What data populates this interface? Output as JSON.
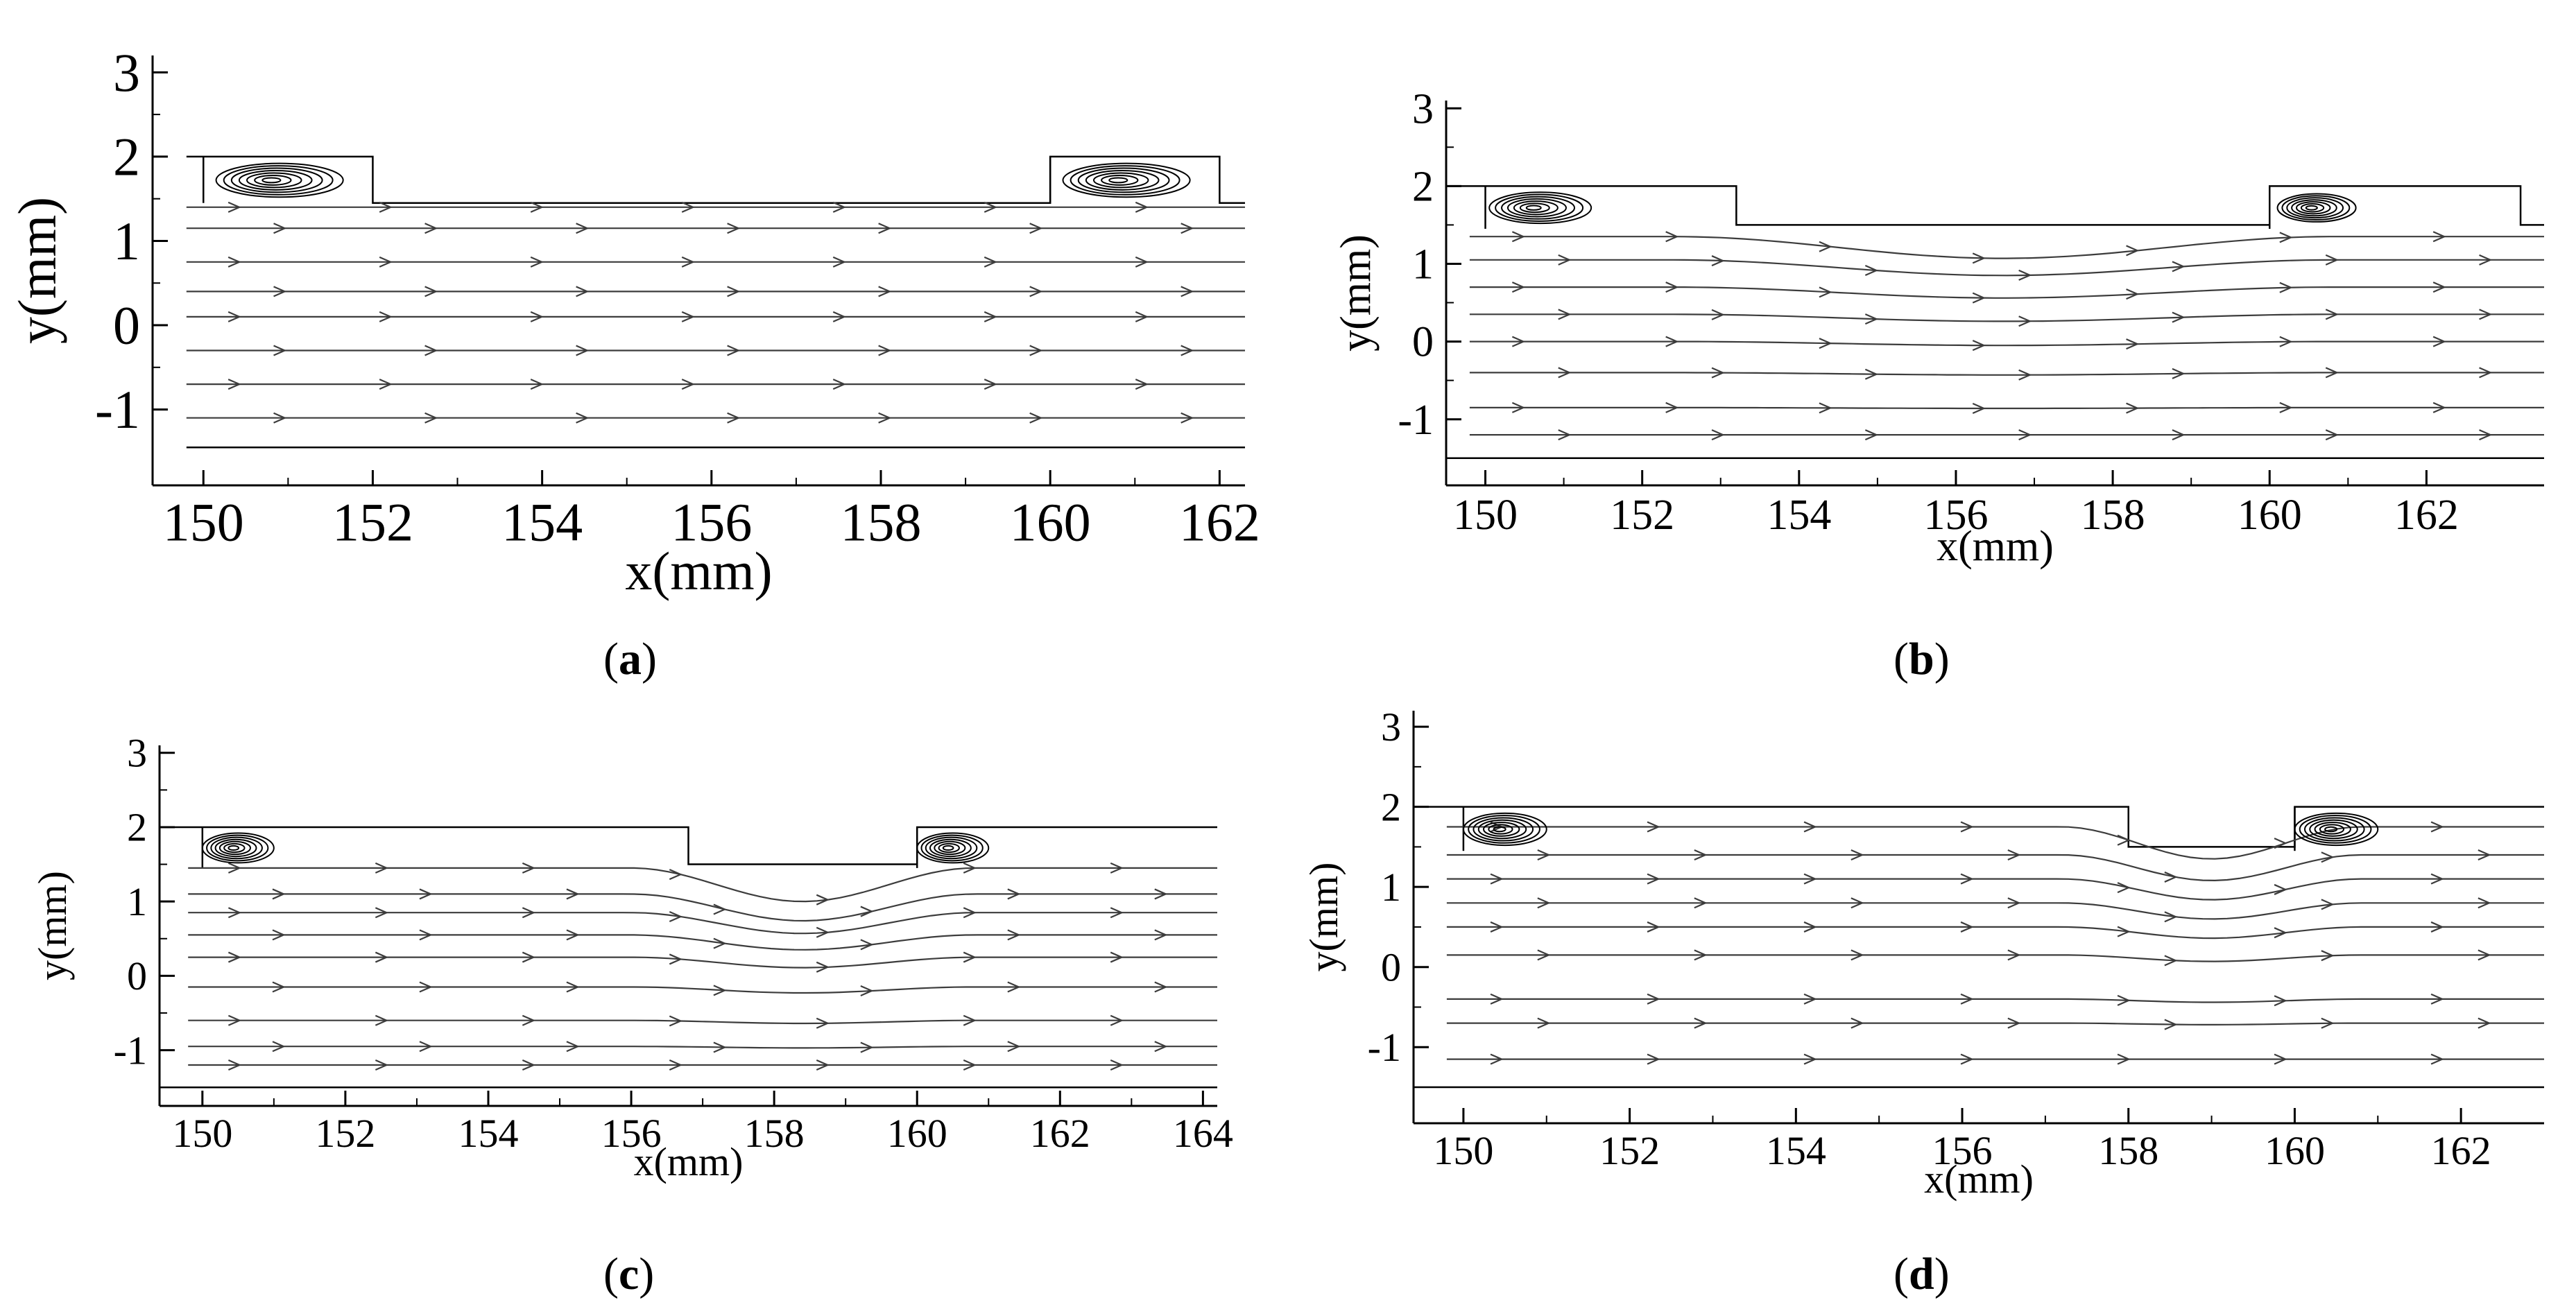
{
  "figure": {
    "panel_labels": [
      "a",
      "b",
      "c",
      "d"
    ]
  },
  "colors": {
    "axis": "#000000",
    "streamline": "#3c3c3c",
    "vortex": "#000000",
    "background": "#ffffff"
  },
  "chart_data": [
    {
      "panel": "a",
      "type": "line",
      "description_kind": "streamlines",
      "xlabel": "x(mm)",
      "ylabel": "y(mm)",
      "xlim": [
        149.4,
        162.3
      ],
      "ylim": [
        -1.9,
        3.2
      ],
      "xticks": [
        150,
        152,
        154,
        156,
        158,
        160,
        162
      ],
      "yticks": [
        -1,
        0,
        1,
        2,
        3
      ],
      "grid": false,
      "channel_top_profile": [
        [
          150,
          2.0
        ],
        [
          152,
          2.0
        ],
        [
          152,
          1.45
        ],
        [
          160,
          1.45
        ],
        [
          160,
          2.0
        ],
        [
          162,
          2.0
        ],
        [
          162,
          1.45
        ],
        [
          162.3,
          1.45
        ]
      ],
      "channel_bottom": -1.45,
      "channel_x_range": [
        149.8,
        162.3
      ],
      "streamline_y": [
        1.4,
        1.15,
        0.75,
        0.4,
        0.1,
        -0.3,
        -0.7,
        -1.1
      ],
      "streamline_dip": [
        0,
        0,
        0,
        0,
        0,
        0,
        0,
        0
      ],
      "vortices": [
        {
          "x": 150.9,
          "y": 1.72,
          "rx": 0.75,
          "ry": 0.2
        },
        {
          "x": 160.9,
          "y": 1.72,
          "rx": 0.75,
          "ry": 0.2
        }
      ]
    },
    {
      "panel": "b",
      "type": "line",
      "description_kind": "streamlines",
      "xlabel": "x(mm)",
      "ylabel": "y(mm)",
      "xlim": [
        149.5,
        163.5
      ],
      "ylim": [
        -1.85,
        3.1
      ],
      "xticks": [
        150,
        152,
        154,
        156,
        158,
        160,
        162
      ],
      "yticks": [
        -1,
        0,
        1,
        2,
        3
      ],
      "grid": false,
      "channel_top_profile": [
        [
          150,
          2.0
        ],
        [
          153.2,
          2.0
        ],
        [
          153.2,
          1.5
        ],
        [
          160,
          1.5
        ],
        [
          160,
          2.0
        ],
        [
          163.2,
          2.0
        ],
        [
          163.2,
          1.5
        ],
        [
          163.5,
          1.5
        ]
      ],
      "channel_bottom": -1.5,
      "channel_x_range": [
        149.5,
        163.5
      ],
      "streamline_y": [
        1.35,
        1.05,
        0.7,
        0.35,
        0.0,
        -0.4,
        -0.85,
        -1.2
      ],
      "streamline_dip": [
        0.28,
        0.2,
        0.14,
        0.09,
        0.05,
        0.03,
        0.01,
        0.0
      ],
      "vortices": [
        {
          "x": 150.7,
          "y": 1.72,
          "rx": 0.65,
          "ry": 0.2
        },
        {
          "x": 160.6,
          "y": 1.72,
          "rx": 0.5,
          "ry": 0.18
        }
      ]
    },
    {
      "panel": "c",
      "type": "line",
      "description_kind": "streamlines",
      "xlabel": "x(mm)",
      "ylabel": "y(mm)",
      "xlim": [
        149.4,
        164.2
      ],
      "ylim": [
        -1.75,
        3.1
      ],
      "xticks": [
        150,
        152,
        154,
        156,
        158,
        160,
        162,
        164
      ],
      "yticks": [
        -1,
        0,
        1,
        2,
        3
      ],
      "grid": false,
      "channel_top_profile": [
        [
          150,
          2.0
        ],
        [
          156.8,
          2.0
        ],
        [
          156.8,
          1.5
        ],
        [
          160,
          1.5
        ],
        [
          160,
          2.0
        ],
        [
          164.2,
          2.0
        ]
      ],
      "channel_bottom": -1.5,
      "channel_x_range": [
        149.4,
        164.2
      ],
      "streamline_y": [
        1.45,
        1.1,
        0.85,
        0.55,
        0.25,
        -0.15,
        -0.6,
        -0.95,
        -1.2
      ],
      "streamline_dip": [
        0.45,
        0.36,
        0.28,
        0.2,
        0.14,
        0.08,
        0.04,
        0.02,
        0.0
      ],
      "vortices": [
        {
          "x": 150.5,
          "y": 1.72,
          "rx": 0.5,
          "ry": 0.2
        },
        {
          "x": 160.5,
          "y": 1.72,
          "rx": 0.5,
          "ry": 0.2
        }
      ]
    },
    {
      "panel": "d",
      "type": "line",
      "description_kind": "streamlines",
      "xlabel": "x(mm)",
      "ylabel": "y(mm)",
      "xlim": [
        149.4,
        163.0
      ],
      "ylim": [
        -1.95,
        3.2
      ],
      "xticks": [
        150,
        152,
        154,
        156,
        158,
        160,
        162
      ],
      "yticks": [
        -1,
        0,
        1,
        2,
        3
      ],
      "grid": false,
      "channel_top_profile": [
        [
          150,
          2.0
        ],
        [
          158,
          2.0
        ],
        [
          158,
          1.5
        ],
        [
          160,
          1.5
        ],
        [
          160,
          2.0
        ],
        [
          163.0,
          2.0
        ]
      ],
      "channel_bottom": -1.5,
      "channel_x_range": [
        149.4,
        163.0
      ],
      "streamline_y": [
        1.75,
        1.4,
        1.1,
        0.8,
        0.5,
        0.15,
        -0.4,
        -0.7,
        -1.15
      ],
      "streamline_dip": [
        0.4,
        0.32,
        0.26,
        0.2,
        0.14,
        0.08,
        0.04,
        0.02,
        0.0
      ],
      "vortices": [
        {
          "x": 150.5,
          "y": 1.72,
          "rx": 0.5,
          "ry": 0.2
        },
        {
          "x": 160.5,
          "y": 1.72,
          "rx": 0.5,
          "ry": 0.2
        }
      ]
    }
  ]
}
